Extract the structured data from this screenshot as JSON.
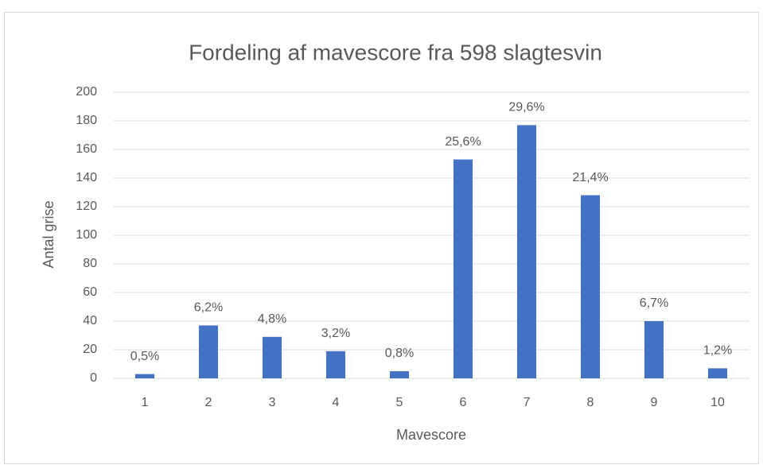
{
  "chart_data": {
    "type": "bar",
    "title": "Fordeling af mavescore fra 598 slagtesvin",
    "x_label": "Mavescore",
    "y_label": "Antal grise",
    "categories": [
      "1",
      "2",
      "3",
      "4",
      "5",
      "6",
      "7",
      "8",
      "9",
      "10"
    ],
    "values": [
      3,
      37,
      29,
      19,
      5,
      153,
      177,
      128,
      40,
      7
    ],
    "value_labels": [
      "0,5%",
      "6,2%",
      "4,8%",
      "3,2%",
      "0,8%",
      "25,6%",
      "29,6%",
      "21,4%",
      "6,7%",
      "1,2%"
    ],
    "color": "#4472c4",
    "ylim": [
      0,
      200
    ],
    "yticks": [
      0,
      20,
      40,
      60,
      80,
      100,
      120,
      140,
      160,
      180,
      200
    ],
    "grid": true
  }
}
